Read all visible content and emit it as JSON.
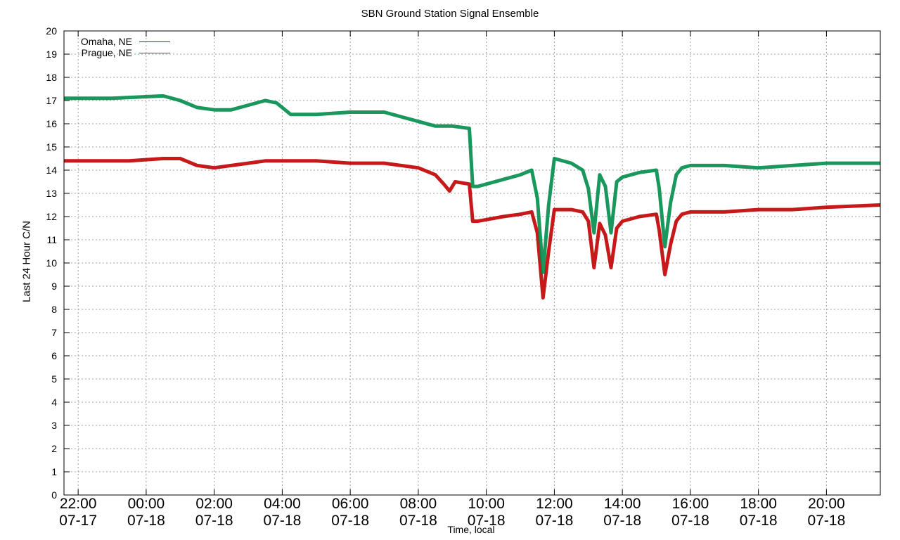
{
  "chart_data": {
    "type": "line",
    "title": "SBN Ground Station Signal Ensemble",
    "xlabel": "Time, local",
    "ylabel": "Last 24 Hour C/N",
    "ylim": [
      0,
      20
    ],
    "xlim": [
      "07-17 21:35",
      "07-18 21:35"
    ],
    "yticks": [
      "0",
      "1",
      "2",
      "3",
      "4",
      "5",
      "6",
      "7",
      "8",
      "9",
      "10",
      "11",
      "12",
      "13",
      "14",
      "15",
      "16",
      "17",
      "18",
      "19",
      "20"
    ],
    "xticks": [
      {
        "time": "22:00",
        "date": "07-17"
      },
      {
        "time": "00:00",
        "date": "07-18"
      },
      {
        "time": "02:00",
        "date": "07-18"
      },
      {
        "time": "04:00",
        "date": "07-18"
      },
      {
        "time": "06:00",
        "date": "07-18"
      },
      {
        "time": "08:00",
        "date": "07-18"
      },
      {
        "time": "10:00",
        "date": "07-18"
      },
      {
        "time": "12:00",
        "date": "07-18"
      },
      {
        "time": "14:00",
        "date": "07-18"
      },
      {
        "time": "16:00",
        "date": "07-18"
      },
      {
        "time": "18:00",
        "date": "07-18"
      },
      {
        "time": "20:00",
        "date": "07-18"
      }
    ],
    "grid": true,
    "legend_position": "top-left",
    "series": [
      {
        "name": "Omaha, NE",
        "color": "#c00000",
        "x": [
          "07-17 21:35",
          "07-17 22:40",
          "07-17 23:30",
          "07-18 00:30",
          "07-18 01:00",
          "07-18 01:30",
          "07-18 02:00",
          "07-18 02:30",
          "07-18 03:00",
          "07-18 03:30",
          "07-18 04:00",
          "07-18 05:00",
          "07-18 06:00",
          "07-18 07:00",
          "07-18 08:00",
          "07-18 08:30",
          "07-18 08:45",
          "07-18 08:55",
          "07-18 09:05",
          "07-18 09:30",
          "07-18 09:36",
          "07-18 09:45",
          "07-18 10:30",
          "07-18 11:00",
          "07-18 11:20",
          "07-18 11:30",
          "07-18 11:40",
          "07-18 11:50",
          "07-18 12:00",
          "07-18 12:30",
          "07-18 12:50",
          "07-18 13:00",
          "07-18 13:10",
          "07-18 13:20",
          "07-18 13:30",
          "07-18 13:40",
          "07-18 13:50",
          "07-18 14:00",
          "07-18 14:30",
          "07-18 15:00",
          "07-18 15:05",
          "07-18 15:15",
          "07-18 15:25",
          "07-18 15:35",
          "07-18 15:45",
          "07-18 16:00",
          "07-18 17:00",
          "07-18 18:00",
          "07-18 19:00",
          "07-18 20:00",
          "07-18 21:35"
        ],
        "values": [
          14.4,
          14.4,
          14.4,
          14.5,
          14.5,
          14.2,
          14.1,
          14.2,
          14.3,
          14.4,
          14.4,
          14.4,
          14.3,
          14.3,
          14.1,
          13.8,
          13.4,
          13.1,
          13.5,
          13.4,
          11.8,
          11.8,
          12.0,
          12.1,
          12.2,
          11.3,
          8.5,
          10.5,
          12.3,
          12.3,
          12.2,
          11.8,
          9.8,
          11.7,
          11.2,
          9.8,
          11.5,
          11.8,
          12.0,
          12.1,
          11.4,
          9.5,
          10.8,
          11.8,
          12.1,
          12.2,
          12.2,
          12.3,
          12.3,
          12.4,
          12.5
        ]
      },
      {
        "name": "Prague, NE",
        "color": "#008c4a",
        "x": [
          "07-17 21:35",
          "07-17 23:00",
          "07-18 00:30",
          "07-18 01:00",
          "07-18 01:30",
          "07-18 02:00",
          "07-18 02:30",
          "07-18 03:00",
          "07-18 03:30",
          "07-18 03:50",
          "07-18 04:15",
          "07-18 05:00",
          "07-18 06:00",
          "07-18 07:00",
          "07-18 07:30",
          "07-18 08:00",
          "07-18 08:30",
          "07-18 09:00",
          "07-18 09:30",
          "07-18 09:36",
          "07-18 09:45",
          "07-18 10:30",
          "07-18 11:00",
          "07-18 11:20",
          "07-18 11:30",
          "07-18 11:40",
          "07-18 11:50",
          "07-18 12:00",
          "07-18 12:30",
          "07-18 12:50",
          "07-18 13:00",
          "07-18 13:10",
          "07-18 13:20",
          "07-18 13:30",
          "07-18 13:40",
          "07-18 13:50",
          "07-18 14:00",
          "07-18 14:30",
          "07-18 15:00",
          "07-18 15:05",
          "07-18 15:15",
          "07-18 15:25",
          "07-18 15:35",
          "07-18 15:45",
          "07-18 16:00",
          "07-18 17:00",
          "07-18 18:00",
          "07-18 19:00",
          "07-18 20:00",
          "07-18 21:35"
        ],
        "values": [
          17.1,
          17.1,
          17.2,
          17.0,
          16.7,
          16.6,
          16.6,
          16.8,
          17.0,
          16.9,
          16.4,
          16.4,
          16.5,
          16.5,
          16.3,
          16.1,
          15.9,
          15.9,
          15.8,
          13.3,
          13.3,
          13.6,
          13.8,
          14.0,
          12.8,
          9.6,
          12.5,
          14.5,
          14.3,
          14.0,
          13.2,
          11.3,
          13.8,
          13.3,
          11.3,
          13.5,
          13.7,
          13.9,
          14.0,
          13.2,
          10.7,
          12.6,
          13.8,
          14.1,
          14.2,
          14.2,
          14.1,
          14.2,
          14.3,
          14.3
        ]
      }
    ]
  }
}
